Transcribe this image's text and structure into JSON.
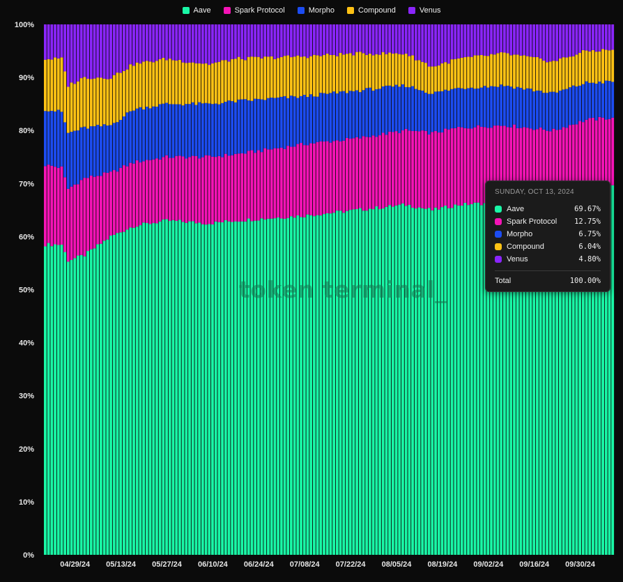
{
  "colors": {
    "Aave": "#19f7a6",
    "Spark Protocol": "#f513b6",
    "Morpho": "#1c4cf1",
    "Compound": "#fec214",
    "Venus": "#8a25fb",
    "background": "#0b0b0b"
  },
  "watermark": "token terminal_",
  "tooltip": {
    "date": "SUNDAY, OCT 13, 2024",
    "rows": [
      {
        "name": "Aave",
        "value": "69.67%"
      },
      {
        "name": "Spark Protocol",
        "value": "12.75%"
      },
      {
        "name": "Morpho",
        "value": "6.75%"
      },
      {
        "name": "Compound",
        "value": "6.04%"
      },
      {
        "name": "Venus",
        "value": "4.80%"
      }
    ],
    "total_label": "Total",
    "total_value": "100.00%"
  },
  "chart_data": {
    "type": "bar",
    "stacked": true,
    "normalized": true,
    "legend": [
      "Aave",
      "Spark Protocol",
      "Morpho",
      "Compound",
      "Venus"
    ],
    "legend_position": "top-center",
    "x_start": "04/20/24",
    "x_end": "10/13/24",
    "xticks": [
      "04/29/24",
      "05/13/24",
      "05/27/24",
      "06/10/24",
      "06/24/24",
      "07/08/24",
      "07/22/24",
      "08/05/24",
      "08/19/24",
      "09/02/24",
      "09/16/24",
      "09/30/24"
    ],
    "yticks": [
      "0%",
      "10%",
      "20%",
      "30%",
      "40%",
      "50%",
      "60%",
      "70%",
      "80%",
      "90%",
      "100%"
    ],
    "ylim": [
      0,
      100
    ],
    "cumulative_keyframes": [
      {
        "day": 0,
        "aave": 58.5,
        "spark": 73.5,
        "morpho": 84.0,
        "compound": 93.5
      },
      {
        "day": 5,
        "aave": 58.5,
        "spark": 73.0,
        "morpho": 83.5,
        "compound": 93.5
      },
      {
        "day": 7,
        "aave": 55.5,
        "spark": 69.0,
        "morpho": 79.5,
        "compound": 88.5
      },
      {
        "day": 12,
        "aave": 56.5,
        "spark": 71.0,
        "morpho": 80.5,
        "compound": 90.0
      },
      {
        "day": 20,
        "aave": 60.0,
        "spark": 72.0,
        "morpho": 81.0,
        "compound": 90.0
      },
      {
        "day": 27,
        "aave": 62.0,
        "spark": 74.0,
        "morpho": 84.0,
        "compound": 92.5
      },
      {
        "day": 37,
        "aave": 63.0,
        "spark": 75.0,
        "morpho": 85.0,
        "compound": 93.5
      },
      {
        "day": 50,
        "aave": 62.5,
        "spark": 75.0,
        "morpho": 85.0,
        "compound": 92.5
      },
      {
        "day": 58,
        "aave": 63.0,
        "spark": 75.5,
        "morpho": 85.5,
        "compound": 93.5
      },
      {
        "day": 80,
        "aave": 64.0,
        "spark": 77.5,
        "morpho": 86.5,
        "compound": 94.0
      },
      {
        "day": 95,
        "aave": 65.0,
        "spark": 78.5,
        "morpho": 87.5,
        "compound": 94.5
      },
      {
        "day": 110,
        "aave": 66.0,
        "spark": 80.0,
        "morpho": 88.5,
        "compound": 94.5
      },
      {
        "day": 118,
        "aave": 65.0,
        "spark": 79.5,
        "morpho": 87.0,
        "compound": 92.0
      },
      {
        "day": 126,
        "aave": 66.0,
        "spark": 80.5,
        "morpho": 88.0,
        "compound": 93.5
      },
      {
        "day": 140,
        "aave": 66.5,
        "spark": 81.0,
        "morpho": 88.5,
        "compound": 94.5
      },
      {
        "day": 155,
        "aave": 67.0,
        "spark": 80.0,
        "morpho": 87.0,
        "compound": 93.0
      },
      {
        "day": 165,
        "aave": 67.5,
        "spark": 82.0,
        "morpho": 89.0,
        "compound": 95.0
      },
      {
        "day": 173,
        "aave": 69.67,
        "spark": 82.42,
        "morpho": 89.17,
        "compound": 95.21
      }
    ]
  }
}
